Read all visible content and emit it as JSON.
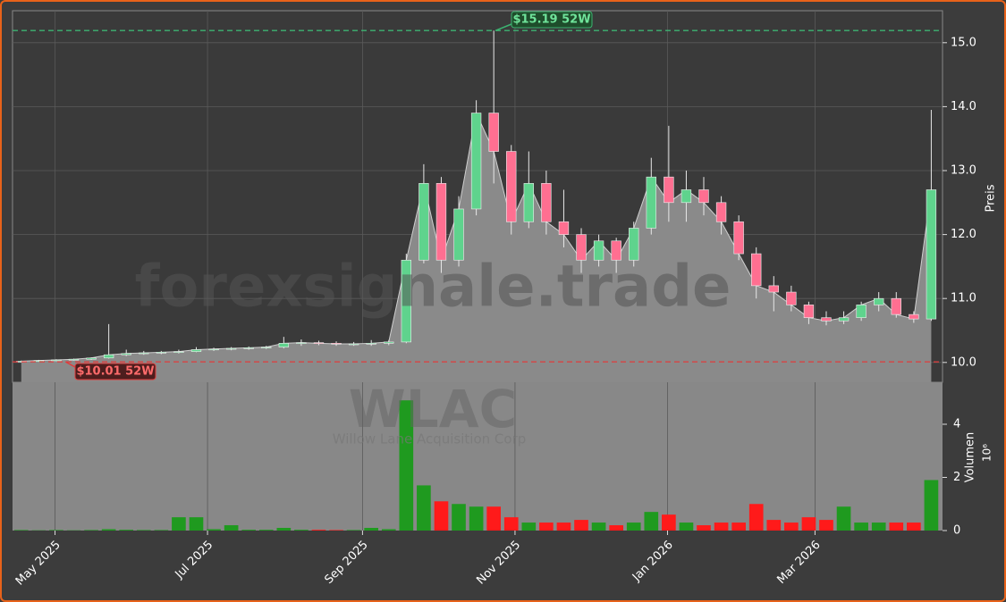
{
  "chart_data": {
    "type": "candlestick",
    "watermark": "forexsignale.trade",
    "ticker": "WLAC",
    "company": "Willow Lane Acquisition Corp",
    "ylabel": "Preis",
    "y2label": "Volumen",
    "volume_scale": "10⁶",
    "x": [
      "2025-04-14",
      "2025-04-21",
      "2025-04-28",
      "2025-05-05",
      "2025-05-12",
      "2025-05-19",
      "2025-05-26",
      "2025-06-02",
      "2025-06-09",
      "2025-06-16",
      "2025-06-23",
      "2025-06-30",
      "2025-07-07",
      "2025-07-14",
      "2025-07-21",
      "2025-07-28",
      "2025-08-04",
      "2025-08-11",
      "2025-08-18",
      "2025-08-25",
      "2025-09-01",
      "2025-09-08",
      "2025-09-15",
      "2025-09-22",
      "2025-09-29",
      "2025-10-06",
      "2025-10-13",
      "2025-10-20",
      "2025-10-27",
      "2025-11-03",
      "2025-11-10",
      "2025-11-17",
      "2025-11-24",
      "2025-12-01",
      "2025-12-08",
      "2025-12-15",
      "2025-12-22",
      "2025-12-29",
      "2026-01-05",
      "2026-01-12",
      "2026-01-19",
      "2026-01-26",
      "2026-02-02",
      "2026-02-09",
      "2026-02-16",
      "2026-02-23",
      "2026-03-02",
      "2026-03-09",
      "2026-03-16",
      "2026-03-23",
      "2026-03-30",
      "2026-04-06",
      "2026-04-13"
    ],
    "open": [
      10.01,
      10.02,
      10.03,
      10.04,
      10.05,
      10.07,
      10.12,
      10.14,
      10.15,
      10.16,
      10.17,
      10.2,
      10.21,
      10.22,
      10.23,
      10.24,
      10.3,
      10.31,
      10.3,
      10.29,
      10.29,
      10.3,
      10.32,
      11.6,
      12.8,
      11.6,
      12.4,
      13.9,
      13.3,
      12.2,
      12.8,
      12.2,
      12.0,
      11.6,
      11.9,
      11.6,
      12.1,
      12.9,
      12.5,
      12.7,
      12.5,
      12.2,
      11.7,
      11.2,
      11.1,
      10.9,
      10.7,
      10.65,
      10.7,
      10.9,
      11.0,
      10.75,
      10.68
    ],
    "high": [
      10.03,
      10.04,
      10.05,
      10.06,
      10.08,
      10.6,
      10.2,
      10.18,
      10.18,
      10.2,
      10.24,
      10.23,
      10.24,
      10.25,
      10.26,
      10.4,
      10.36,
      10.34,
      10.33,
      10.32,
      10.35,
      10.35,
      11.7,
      13.1,
      12.9,
      12.6,
      14.1,
      15.19,
      13.4,
      13.3,
      13.0,
      12.7,
      12.1,
      12.0,
      11.95,
      12.2,
      13.2,
      13.7,
      13.0,
      12.9,
      12.6,
      12.3,
      11.8,
      11.35,
      11.2,
      10.95,
      10.8,
      10.8,
      10.95,
      11.1,
      11.1,
      10.8,
      13.95
    ],
    "low": [
      10.0,
      10.01,
      10.02,
      10.03,
      10.04,
      10.06,
      10.1,
      10.12,
      10.13,
      10.14,
      10.16,
      10.18,
      10.19,
      10.2,
      10.21,
      10.22,
      10.26,
      10.27,
      10.26,
      10.26,
      10.26,
      10.27,
      10.3,
      11.55,
      11.4,
      11.5,
      12.3,
      12.8,
      12.0,
      12.1,
      12.0,
      11.8,
      11.4,
      11.5,
      11.4,
      11.5,
      12.0,
      12.2,
      12.2,
      12.3,
      12.0,
      11.6,
      11.0,
      10.8,
      10.8,
      10.6,
      10.58,
      10.6,
      10.65,
      10.8,
      10.7,
      10.62,
      10.65
    ],
    "close": [
      10.02,
      10.03,
      10.04,
      10.05,
      10.07,
      10.12,
      10.14,
      10.15,
      10.16,
      10.17,
      10.2,
      10.21,
      10.22,
      10.23,
      10.24,
      10.3,
      10.31,
      10.3,
      10.29,
      10.29,
      10.3,
      10.32,
      11.6,
      12.8,
      11.6,
      12.4,
      13.9,
      13.3,
      12.2,
      12.8,
      12.2,
      12.0,
      11.6,
      11.9,
      11.6,
      12.1,
      12.9,
      12.5,
      12.7,
      12.5,
      12.2,
      11.7,
      11.2,
      11.1,
      10.9,
      10.7,
      10.65,
      10.7,
      10.9,
      11.0,
      10.75,
      10.68,
      12.7
    ],
    "volume": [
      0.02,
      0.01,
      0.02,
      0.01,
      0.02,
      0.05,
      0.03,
      0.02,
      0.02,
      0.5,
      0.5,
      0.05,
      0.2,
      0.03,
      0.03,
      0.1,
      0.03,
      0.03,
      0.02,
      0.02,
      0.1,
      0.05,
      4.9,
      1.7,
      1.1,
      1.0,
      0.9,
      0.9,
      0.5,
      0.3,
      0.3,
      0.3,
      0.4,
      0.3,
      0.2,
      0.3,
      0.7,
      0.6,
      0.3,
      0.2,
      0.3,
      0.3,
      1.0,
      0.4,
      0.3,
      0.5,
      0.4,
      0.9,
      0.3,
      0.3,
      0.3,
      0.3,
      1.9
    ],
    "up_color": "#5fd38d",
    "down_color": "#ff6f91",
    "volume_up_color": "#1f9a1f",
    "volume_down_color": "#ff1a1a",
    "area_color": "#8a8a8a",
    "xlim": [
      "2025-04-14",
      "2026-04-21"
    ],
    "xticks": [
      {
        "value": "2025-05-01",
        "label": "May 2025"
      },
      {
        "value": "2025-07-01",
        "label": "Jul 2025"
      },
      {
        "value": "2025-09-01",
        "label": "Sep 2025"
      },
      {
        "value": "2025-11-01",
        "label": "Nov 2025"
      },
      {
        "value": "2026-01-01",
        "label": "Jan 2026"
      },
      {
        "value": "2026-03-01",
        "label": "Mar 2026"
      }
    ],
    "ylim": [
      9.69,
      15.5
    ],
    "yticks": [
      {
        "value": 10,
        "label": "10.0"
      },
      {
        "value": 11,
        "label": "11.0"
      },
      {
        "value": 12,
        "label": "12.0"
      },
      {
        "value": 13,
        "label": "13.0"
      },
      {
        "value": 14,
        "label": "14.0"
      },
      {
        "value": 15,
        "label": "15.0"
      }
    ],
    "y2lim": [
      0,
      5.58
    ],
    "y2ticks": [
      0,
      2,
      4
    ],
    "high_52w": 15.19,
    "high_52w_label": "$15.19 52W",
    "low_52w": 10.01,
    "low_52w_label": "$10.01 52W",
    "grid": true
  }
}
